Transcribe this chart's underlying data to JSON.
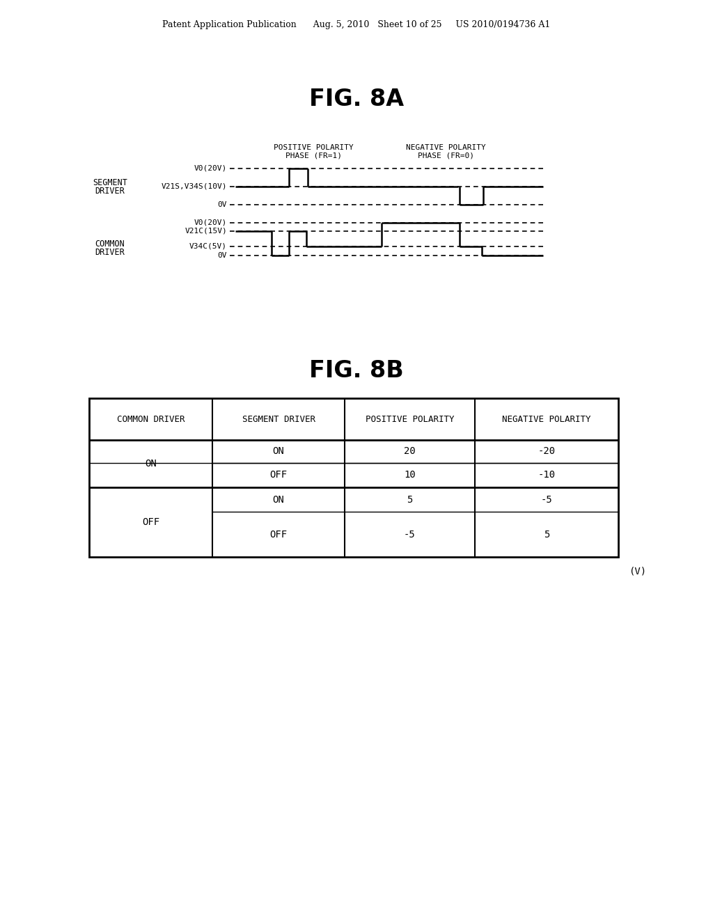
{
  "title_8a": "FIG. 8A",
  "title_8b": "FIG. 8B",
  "header_text": "Patent Application Publication      Aug. 5, 2010   Sheet 10 of 25     US 2010/0194736 A1",
  "table_headers": [
    "COMMON DRIVER",
    "SEGMENT DRIVER",
    "POSITIVE POLARITY",
    "NEGATIVE POLARITY"
  ],
  "table_rows": [
    [
      "ON",
      "ON",
      "20",
      "-20"
    ],
    [
      "ON",
      "OFF",
      "10",
      "-10"
    ],
    [
      "OFF",
      "ON",
      "5",
      "-5"
    ],
    [
      "OFF",
      "OFF",
      "-5",
      "5"
    ]
  ],
  "unit_label": "(V)",
  "bg_color": "#ffffff",
  "text_color": "#000000",
  "seg_labels": [
    "V0(20V)",
    "V21S,V34S(10V)",
    "0V"
  ],
  "com_labels": [
    "V0(20V)",
    "V21C(15V)",
    "V34C(5V)",
    "0V"
  ]
}
